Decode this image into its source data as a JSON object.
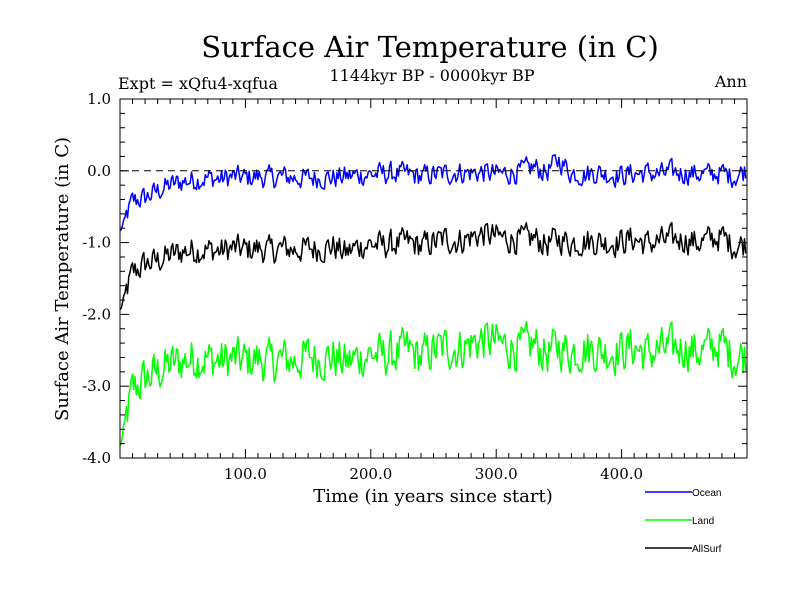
{
  "chart_data": {
    "type": "line",
    "title": "Surface Air Temperature (in C)",
    "subtitle": "1144kyr BP - 0000kyr BP",
    "experiment": "Expt = xQfu4-xqfua",
    "period": "Ann",
    "xlabel": "Time (in years since start)",
    "ylabel": "Surface Air Temperature (in C)",
    "xlim": [
      0,
      500
    ],
    "ylim": [
      -4.0,
      1.0
    ],
    "xticks": [
      100,
      200,
      300,
      400
    ],
    "xtick_labels": [
      "100.0",
      "200.0",
      "300.0",
      "400.0"
    ],
    "yticks": [
      1.0,
      0.0,
      -1.0,
      -2.0,
      -3.0,
      -4.0
    ],
    "ytick_labels": [
      "1.0",
      "0.0",
      "-1.0",
      "-2.0",
      "-3.0",
      "-4.0"
    ],
    "reference_line": 0.0,
    "legend_position": "bottom-right",
    "series": [
      {
        "name": "Ocean",
        "color": "#0000ff",
        "values": [
          -0.85,
          -0.42,
          -0.38,
          -0.28,
          -0.2,
          -0.15,
          -0.12,
          -0.1,
          -0.12,
          -0.08,
          -0.1,
          -0.08,
          -0.1,
          -0.08,
          -0.1,
          -0.1,
          -0.09,
          -0.1,
          -0.08,
          -0.06,
          -0.05,
          -0.04,
          -0.04,
          -0.05,
          -0.08,
          -0.05,
          -0.04,
          -0.02,
          -0.03,
          -0.02,
          -0.05,
          -0.03,
          -0.01,
          0.05,
          -0.02,
          0.15,
          -0.03,
          -0.05,
          -0.02,
          -0.05,
          -0.06,
          -0.04,
          -0.03,
          -0.05,
          -0.02,
          -0.03,
          -0.04,
          -0.05,
          -0.03,
          -0.08,
          0.02
        ]
      },
      {
        "name": "Land",
        "color": "#00ff00",
        "values": [
          -3.85,
          -3.05,
          -2.9,
          -2.8,
          -2.7,
          -2.65,
          -2.6,
          -2.62,
          -2.65,
          -2.62,
          -2.65,
          -2.62,
          -2.68,
          -2.62,
          -2.65,
          -2.58,
          -2.6,
          -2.6,
          -2.68,
          -2.6,
          -2.55,
          -2.58,
          -2.55,
          -2.5,
          -2.6,
          -2.5,
          -2.45,
          -2.48,
          -2.4,
          -2.35,
          -2.4,
          -2.45,
          -2.48,
          -2.42,
          -2.55,
          -2.45,
          -2.52,
          -2.48,
          -2.5,
          -2.52,
          -2.5,
          -2.45,
          -2.55,
          -2.5,
          -2.48,
          -2.45,
          -2.52,
          -2.48,
          -2.42,
          -2.6,
          -2.55
        ]
      },
      {
        "name": "AllSurf",
        "color": "#000000",
        "values": [
          -1.95,
          -1.42,
          -1.3,
          -1.25,
          -1.18,
          -1.12,
          -1.1,
          -1.1,
          -1.12,
          -1.08,
          -1.1,
          -1.08,
          -1.12,
          -1.08,
          -1.1,
          -1.08,
          -1.08,
          -1.05,
          -1.15,
          -1.05,
          -1.02,
          -1.04,
          -1.02,
          -1.0,
          -1.05,
          -1.0,
          -0.95,
          -0.98,
          -0.92,
          -0.88,
          -0.92,
          -0.95,
          -0.96,
          -0.94,
          -1.02,
          -0.95,
          -1.0,
          -0.98,
          -0.98,
          -1.0,
          -0.98,
          -0.95,
          -1.02,
          -0.98,
          -0.96,
          -0.95,
          -1.0,
          -0.96,
          -0.92,
          -1.05,
          -1.0
        ]
      }
    ]
  }
}
